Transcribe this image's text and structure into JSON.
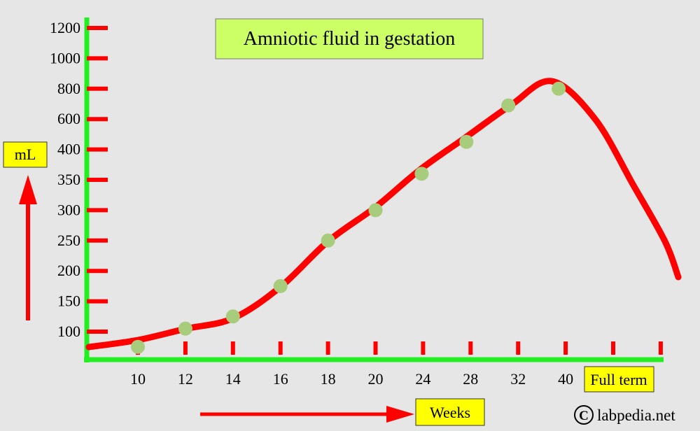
{
  "chart_data": {
    "type": "line",
    "title": "Amniotic fluid in gestation",
    "ylabel": "mL",
    "xlabel": "Weeks",
    "x_end_label": "Full term",
    "y_ticks": [
      "1200",
      "1000",
      "800",
      "600",
      "400",
      "350",
      "300",
      "250",
      "200",
      "150",
      "100"
    ],
    "x_ticks": [
      "10",
      "12",
      "14",
      "16",
      "18",
      "20",
      "24",
      "28",
      "32",
      "40"
    ],
    "x_scale": "categorical (evenly spaced week labels)",
    "y_scale": "non-linear (evenly spaced tick labels)",
    "points": [
      {
        "x": "10",
        "y": 75
      },
      {
        "x": "12",
        "y": 105
      },
      {
        "x": "14",
        "y": 125
      },
      {
        "x": "16",
        "y": 175
      },
      {
        "x": "18",
        "y": 250
      },
      {
        "x": "20",
        "y": 300
      },
      {
        "x": "24",
        "y": 360
      },
      {
        "x": "28",
        "y": 450
      },
      {
        "x": "32",
        "y": 690
      },
      {
        "x": "40",
        "y": 800
      }
    ],
    "trend_after_peak": "declines toward full term",
    "colors": {
      "axes": "#22ee22",
      "ticks": "#ff0000",
      "curve": "#ff0000",
      "points": "#a7cc7c",
      "title_box": "#ccff66",
      "label_box": "#ffff00",
      "background": "#e6e6e6"
    }
  },
  "watermark": "labpedia.net",
  "copyright_symbol": "C"
}
